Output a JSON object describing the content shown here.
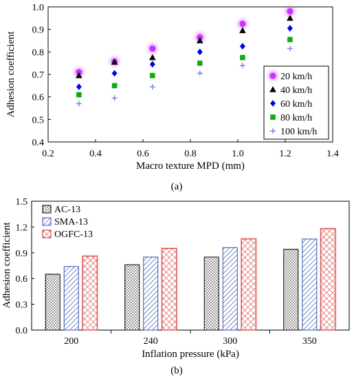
{
  "chart_data": [
    {
      "panel": "a",
      "panel_label": "(a)",
      "type": "scatter",
      "xlabel": "Macro texture MPD (mm)",
      "ylabel": "Adhesion coefficient",
      "xlim": [
        0.2,
        1.4
      ],
      "ylim": [
        0.4,
        1.0
      ],
      "xticks": [
        "0.2",
        "0.4",
        "0.6",
        "0.8",
        "1.0",
        "1.2",
        "1.4"
      ],
      "yticks": [
        "0.4",
        "0.5",
        "0.6",
        "0.7",
        "0.8",
        "0.9",
        "1.0"
      ],
      "grid": false,
      "legend_position": "bottom-right",
      "x": [
        0.33,
        0.48,
        0.64,
        0.84,
        1.02,
        1.22
      ],
      "series": [
        {
          "name": "20 km/h",
          "color": "#cc33ff",
          "marker": "circle",
          "values": [
            0.71,
            0.757,
            0.815,
            0.865,
            0.925,
            0.98
          ]
        },
        {
          "name": "40 km/h",
          "color": "#000000",
          "marker": "triangle",
          "values": [
            0.695,
            0.755,
            0.775,
            0.85,
            0.895,
            0.95
          ]
        },
        {
          "name": "60 km/h",
          "color": "#0000ee",
          "marker": "diamond",
          "values": [
            0.645,
            0.705,
            0.745,
            0.8,
            0.825,
            0.905
          ]
        },
        {
          "name": "80 km/h",
          "color": "#11aa11",
          "marker": "square",
          "values": [
            0.61,
            0.65,
            0.695,
            0.75,
            0.775,
            0.855
          ]
        },
        {
          "name": "100 km/h",
          "color": "#6688cc",
          "marker": "plus",
          "values": [
            0.57,
            0.595,
            0.645,
            0.705,
            0.74,
            0.815
          ]
        }
      ]
    },
    {
      "panel": "b",
      "panel_label": "(b)",
      "type": "bar",
      "xlabel": "Inflation pressure (kPa)",
      "ylabel": "Adhesion coefficient",
      "ylim": [
        0,
        1.5
      ],
      "yticks": [
        "0.0",
        "0.3",
        "0.6",
        "0.9",
        "1.2",
        "1.5"
      ],
      "grid": false,
      "legend_position": "top-left",
      "categories": [
        "200",
        "240",
        "300",
        "350"
      ],
      "series": [
        {
          "name": "AC-13",
          "color": "#000000",
          "pattern": "dots",
          "values": [
            0.65,
            0.76,
            0.85,
            0.94
          ]
        },
        {
          "name": "SMA-13",
          "color": "#3355aa",
          "pattern": "diagonal",
          "values": [
            0.74,
            0.85,
            0.96,
            1.06
          ]
        },
        {
          "name": "OGFC-13",
          "color": "#cc2222",
          "pattern": "crosshatch",
          "values": [
            0.86,
            0.95,
            1.06,
            1.18
          ]
        }
      ]
    }
  ]
}
